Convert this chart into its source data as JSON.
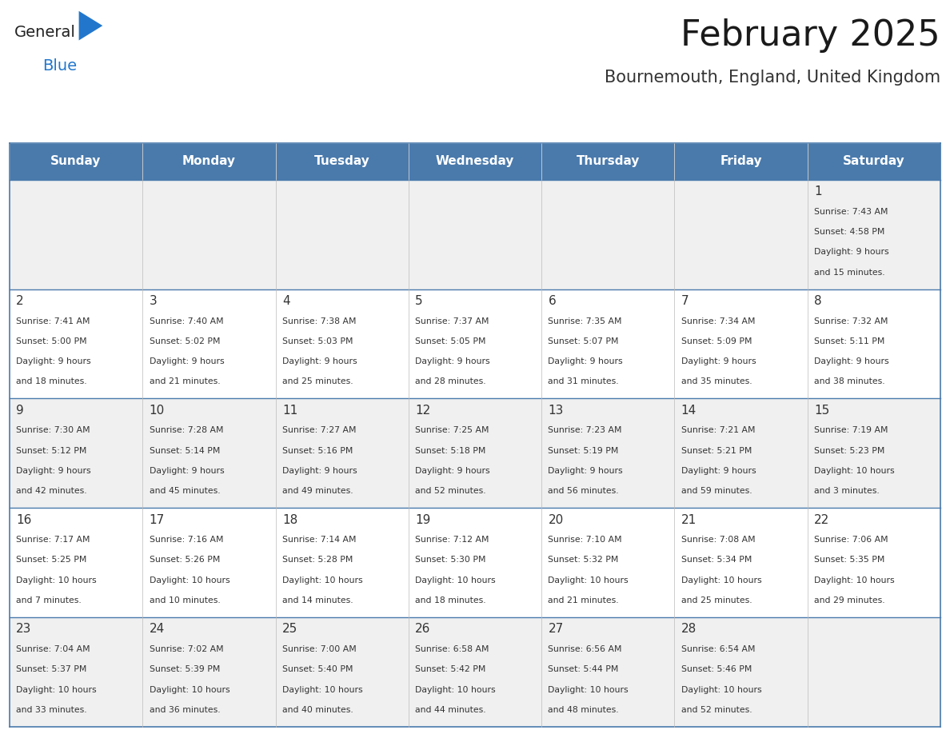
{
  "title": "February 2025",
  "subtitle": "Bournemouth, England, United Kingdom",
  "header_bg": "#4a7aac",
  "header_text": "#ffffff",
  "days_of_week": [
    "Sunday",
    "Monday",
    "Tuesday",
    "Wednesday",
    "Thursday",
    "Friday",
    "Saturday"
  ],
  "row_bg_odd": "#f0f0f0",
  "row_bg_even": "#ffffff",
  "cell_border_color": "#4a7aac",
  "row_border_color": "#4a7aac",
  "day_number_color": "#333333",
  "info_text_color": "#333333",
  "logo_general_color": "#222222",
  "logo_blue_color": "#2277cc",
  "logo_triangle_color": "#2277cc",
  "calendar": [
    [
      null,
      null,
      null,
      null,
      null,
      null,
      {
        "day": 1,
        "sunrise": "7:43 AM",
        "sunset": "4:58 PM",
        "daylight": "9 hours and 15 minutes."
      }
    ],
    [
      {
        "day": 2,
        "sunrise": "7:41 AM",
        "sunset": "5:00 PM",
        "daylight": "9 hours and 18 minutes."
      },
      {
        "day": 3,
        "sunrise": "7:40 AM",
        "sunset": "5:02 PM",
        "daylight": "9 hours and 21 minutes."
      },
      {
        "day": 4,
        "sunrise": "7:38 AM",
        "sunset": "5:03 PM",
        "daylight": "9 hours and 25 minutes."
      },
      {
        "day": 5,
        "sunrise": "7:37 AM",
        "sunset": "5:05 PM",
        "daylight": "9 hours and 28 minutes."
      },
      {
        "day": 6,
        "sunrise": "7:35 AM",
        "sunset": "5:07 PM",
        "daylight": "9 hours and 31 minutes."
      },
      {
        "day": 7,
        "sunrise": "7:34 AM",
        "sunset": "5:09 PM",
        "daylight": "9 hours and 35 minutes."
      },
      {
        "day": 8,
        "sunrise": "7:32 AM",
        "sunset": "5:11 PM",
        "daylight": "9 hours and 38 minutes."
      }
    ],
    [
      {
        "day": 9,
        "sunrise": "7:30 AM",
        "sunset": "5:12 PM",
        "daylight": "9 hours and 42 minutes."
      },
      {
        "day": 10,
        "sunrise": "7:28 AM",
        "sunset": "5:14 PM",
        "daylight": "9 hours and 45 minutes."
      },
      {
        "day": 11,
        "sunrise": "7:27 AM",
        "sunset": "5:16 PM",
        "daylight": "9 hours and 49 minutes."
      },
      {
        "day": 12,
        "sunrise": "7:25 AM",
        "sunset": "5:18 PM",
        "daylight": "9 hours and 52 minutes."
      },
      {
        "day": 13,
        "sunrise": "7:23 AM",
        "sunset": "5:19 PM",
        "daylight": "9 hours and 56 minutes."
      },
      {
        "day": 14,
        "sunrise": "7:21 AM",
        "sunset": "5:21 PM",
        "daylight": "9 hours and 59 minutes."
      },
      {
        "day": 15,
        "sunrise": "7:19 AM",
        "sunset": "5:23 PM",
        "daylight": "10 hours and 3 minutes."
      }
    ],
    [
      {
        "day": 16,
        "sunrise": "7:17 AM",
        "sunset": "5:25 PM",
        "daylight": "10 hours and 7 minutes."
      },
      {
        "day": 17,
        "sunrise": "7:16 AM",
        "sunset": "5:26 PM",
        "daylight": "10 hours and 10 minutes."
      },
      {
        "day": 18,
        "sunrise": "7:14 AM",
        "sunset": "5:28 PM",
        "daylight": "10 hours and 14 minutes."
      },
      {
        "day": 19,
        "sunrise": "7:12 AM",
        "sunset": "5:30 PM",
        "daylight": "10 hours and 18 minutes."
      },
      {
        "day": 20,
        "sunrise": "7:10 AM",
        "sunset": "5:32 PM",
        "daylight": "10 hours and 21 minutes."
      },
      {
        "day": 21,
        "sunrise": "7:08 AM",
        "sunset": "5:34 PM",
        "daylight": "10 hours and 25 minutes."
      },
      {
        "day": 22,
        "sunrise": "7:06 AM",
        "sunset": "5:35 PM",
        "daylight": "10 hours and 29 minutes."
      }
    ],
    [
      {
        "day": 23,
        "sunrise": "7:04 AM",
        "sunset": "5:37 PM",
        "daylight": "10 hours and 33 minutes."
      },
      {
        "day": 24,
        "sunrise": "7:02 AM",
        "sunset": "5:39 PM",
        "daylight": "10 hours and 36 minutes."
      },
      {
        "day": 25,
        "sunrise": "7:00 AM",
        "sunset": "5:40 PM",
        "daylight": "10 hours and 40 minutes."
      },
      {
        "day": 26,
        "sunrise": "6:58 AM",
        "sunset": "5:42 PM",
        "daylight": "10 hours and 44 minutes."
      },
      {
        "day": 27,
        "sunrise": "6:56 AM",
        "sunset": "5:44 PM",
        "daylight": "10 hours and 48 minutes."
      },
      {
        "day": 28,
        "sunrise": "6:54 AM",
        "sunset": "5:46 PM",
        "daylight": "10 hours and 52 minutes."
      },
      null
    ]
  ],
  "fig_width": 11.88,
  "fig_height": 9.18,
  "dpi": 100
}
